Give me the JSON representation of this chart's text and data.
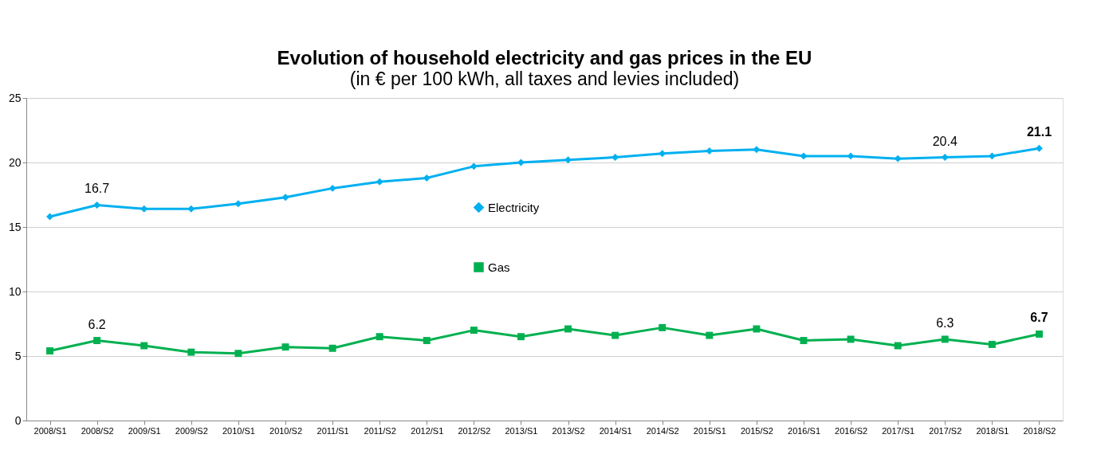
{
  "chart_data": {
    "type": "line",
    "title": "Evolution of household electricity and gas prices in the EU",
    "subtitle": "(in € per 100 kWh, all taxes and levies included)",
    "categories": [
      "2008/S1",
      "2008/S2",
      "2009/S1",
      "2009/S2",
      "2010/S1",
      "2010/S2",
      "2011/S1",
      "2011/S2",
      "2012/S1",
      "2012/S2",
      "2013/S1",
      "2013/S2",
      "2014/S1",
      "2014/S2",
      "2015/S1",
      "2015/S2",
      "2016/S1",
      "2016/S2",
      "2017/S1",
      "2017/S2",
      "2018/S1",
      "2018/S2"
    ],
    "series": [
      {
        "name": "Electricity",
        "color": "#00b0f0",
        "marker": "diamond",
        "values": [
          15.8,
          16.7,
          16.4,
          16.4,
          16.8,
          17.3,
          18.0,
          18.5,
          18.8,
          19.7,
          20.0,
          20.2,
          20.4,
          20.7,
          20.9,
          21.0,
          20.5,
          20.5,
          20.3,
          20.4,
          20.5,
          21.1
        ],
        "value_labels": [
          null,
          "16.7",
          null,
          null,
          null,
          null,
          null,
          null,
          null,
          null,
          null,
          null,
          null,
          null,
          null,
          null,
          null,
          null,
          null,
          "20.4",
          null,
          "21.1"
        ]
      },
      {
        "name": "Gas",
        "color": "#00b050",
        "marker": "square",
        "values": [
          5.4,
          6.2,
          5.8,
          5.3,
          5.2,
          5.7,
          5.6,
          6.5,
          6.2,
          7.0,
          6.5,
          7.1,
          6.6,
          7.2,
          6.6,
          7.1,
          6.2,
          6.3,
          5.8,
          6.3,
          5.9,
          6.7
        ],
        "value_labels": [
          null,
          "6.2",
          null,
          null,
          null,
          null,
          null,
          null,
          null,
          null,
          null,
          null,
          null,
          null,
          null,
          null,
          null,
          null,
          null,
          "6.3",
          null,
          "6.7"
        ]
      }
    ],
    "ylim": [
      0,
      25
    ],
    "yticks": [
      0,
      5,
      10,
      15,
      20,
      25
    ],
    "grid": "y",
    "legend": "center",
    "line_style": "solid"
  }
}
